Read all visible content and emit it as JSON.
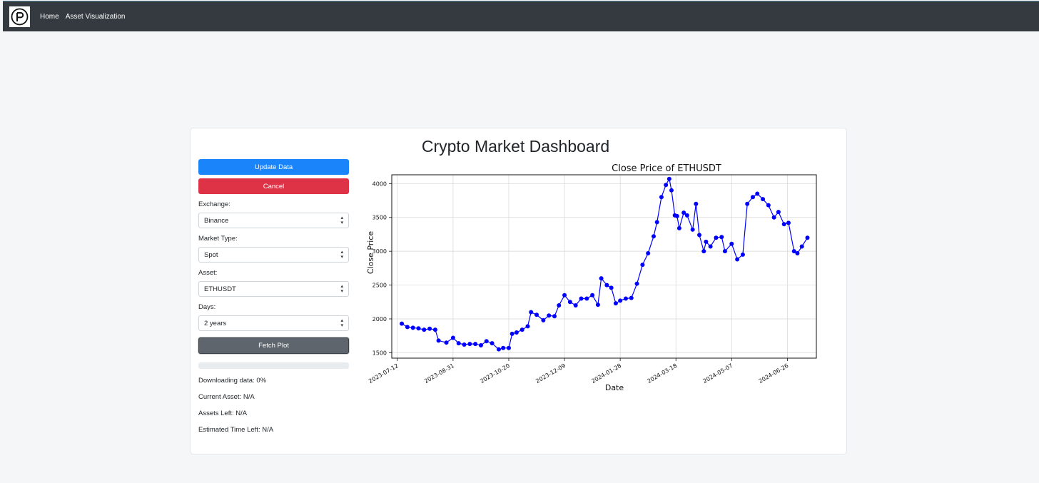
{
  "navbar": {
    "logo_text": "P",
    "links": [
      "Home",
      "Asset Visualization"
    ]
  },
  "dashboard": {
    "title": "Crypto Market Dashboard",
    "update_label": "Update Data",
    "cancel_label": "Cancel",
    "exchange": {
      "label": "Exchange:",
      "value": "Binance"
    },
    "market_type": {
      "label": "Market Type:",
      "value": "Spot"
    },
    "asset": {
      "label": "Asset:",
      "value": "ETHUSDT"
    },
    "days": {
      "label": "Days:",
      "value": "2 years"
    },
    "fetch_label": "Fetch Plot",
    "progress": 0,
    "downloading": "Downloading data: 0%",
    "current_asset": "Current Asset: N/A",
    "assets_left": "Assets Left: N/A",
    "eta": "Estimated Time Left: N/A"
  },
  "colors": {
    "primary": "#1a85fb",
    "danger": "#de3346",
    "secondary": "#5f656c",
    "navbar": "#343a40",
    "series": "#0000ff"
  },
  "chart_data": {
    "type": "line",
    "title": "Close Price of ETHUSDT",
    "xlabel": "Date",
    "ylabel": "Close Price",
    "grid": true,
    "xlim": [
      "2023-07-07",
      "2024-07-22"
    ],
    "ylim": [
      1420,
      4130
    ],
    "xticks": [
      "2023-07-12",
      "2023-08-31",
      "2023-10-20",
      "2023-12-09",
      "2024-01-28",
      "2024-03-18",
      "2024-05-07",
      "2024-06-26"
    ],
    "yticks": [
      1500,
      2000,
      2500,
      3000,
      3500,
      4000
    ],
    "series": [
      {
        "color": "#0000ff",
        "x": [
          "2023-07-16",
          "2023-07-21",
          "2023-07-26",
          "2023-07-31",
          "2023-08-05",
          "2023-08-10",
          "2023-08-15",
          "2023-08-18",
          "2023-08-25",
          "2023-08-31",
          "2023-09-05",
          "2023-09-10",
          "2023-09-15",
          "2023-09-20",
          "2023-09-25",
          "2023-09-30",
          "2023-10-05",
          "2023-10-11",
          "2023-10-15",
          "2023-10-20",
          "2023-10-23",
          "2023-10-27",
          "2023-11-01",
          "2023-11-06",
          "2023-11-09",
          "2023-11-14",
          "2023-11-20",
          "2023-11-25",
          "2023-11-30",
          "2023-12-04",
          "2023-12-09",
          "2023-12-14",
          "2023-12-19",
          "2023-12-24",
          "2023-12-29",
          "2024-01-03",
          "2024-01-08",
          "2024-01-11",
          "2024-01-16",
          "2024-01-20",
          "2024-01-24",
          "2024-01-28",
          "2024-02-02",
          "2024-02-07",
          "2024-02-12",
          "2024-02-17",
          "2024-02-22",
          "2024-02-27",
          "2024-03-01",
          "2024-03-05",
          "2024-03-09",
          "2024-03-12",
          "2024-03-14",
          "2024-03-17",
          "2024-03-19",
          "2024-03-21",
          "2024-03-25",
          "2024-03-28",
          "2024-04-02",
          "2024-04-05",
          "2024-04-08",
          "2024-04-12",
          "2024-04-14",
          "2024-04-18",
          "2024-04-23",
          "2024-04-28",
          "2024-05-01",
          "2024-05-07",
          "2024-05-12",
          "2024-05-17",
          "2024-05-21",
          "2024-05-26",
          "2024-05-30",
          "2024-06-04",
          "2024-06-09",
          "2024-06-14",
          "2024-06-18",
          "2024-06-23",
          "2024-06-27",
          "2024-07-02",
          "2024-07-05",
          "2024-07-09",
          "2024-07-14"
        ],
        "y": [
          1930,
          1880,
          1870,
          1860,
          1840,
          1855,
          1840,
          1680,
          1650,
          1720,
          1640,
          1620,
          1630,
          1630,
          1610,
          1670,
          1640,
          1550,
          1570,
          1570,
          1780,
          1800,
          1840,
          1890,
          2100,
          2060,
          1980,
          2050,
          2040,
          2200,
          2350,
          2250,
          2200,
          2300,
          2300,
          2350,
          2210,
          2600,
          2500,
          2460,
          2230,
          2270,
          2300,
          2310,
          2520,
          2800,
          2970,
          3220,
          3430,
          3800,
          3980,
          4070,
          3900,
          3530,
          3520,
          3340,
          3570,
          3530,
          3320,
          3700,
          3240,
          3000,
          3140,
          3070,
          3200,
          3210,
          3000,
          3110,
          2880,
          2950,
          3700,
          3800,
          3850,
          3770,
          3680,
          3500,
          3580,
          3400,
          3420,
          3000,
          2970,
          3070,
          3200
        ]
      }
    ]
  }
}
